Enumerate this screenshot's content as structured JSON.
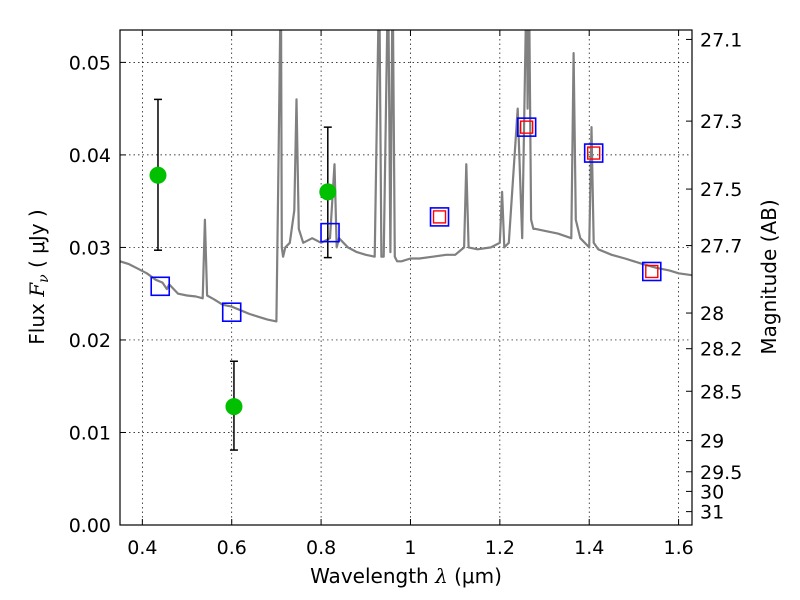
{
  "chart_data": {
    "type": "line",
    "xlabel": {
      "pre": "Wavelength  ",
      "sym": "λ",
      "unit": " (μm)"
    },
    "ylabel": {
      "pre": "Flux  ",
      "sym": "F",
      "sub": "ν",
      "unit": "  ( μJy )"
    },
    "y2label": "Magnitude (AB)",
    "xlim": [
      0.35,
      1.63
    ],
    "ylim": [
      0.0,
      0.0535
    ],
    "grid": true,
    "x_ticks": [
      0.4,
      0.6,
      0.8,
      1.0,
      1.2,
      1.4,
      1.6
    ],
    "x_tick_labels": [
      "0.4",
      "0.6",
      "0.8",
      "1",
      "1.2",
      "1.4",
      "1.6"
    ],
    "y_ticks": [
      0.0,
      0.01,
      0.02,
      0.03,
      0.04,
      0.05
    ],
    "y_tick_labels": [
      "0.00",
      "0.01",
      "0.02",
      "0.03",
      "0.04",
      "0.05"
    ],
    "mag_ticks": [
      "27.1",
      "27.3",
      "27.5",
      "27.7",
      "28",
      "28.2",
      "28.5",
      "29",
      "29.5",
      "30",
      "31"
    ],
    "colors": {
      "model": "#808080",
      "observed": "#00c000",
      "model_band": "#0000ff",
      "model_band_inner": "#ff0000",
      "errorbar": "#000000"
    },
    "series": [
      {
        "kind": "model-spectrum",
        "x": [
          0.35,
          0.37,
          0.39,
          0.41,
          0.43,
          0.445,
          0.455,
          0.46,
          0.48,
          0.5,
          0.52,
          0.535,
          0.54,
          0.545,
          0.56,
          0.58,
          0.6,
          0.62,
          0.64,
          0.66,
          0.68,
          0.7,
          0.705,
          0.71,
          0.712,
          0.715,
          0.72,
          0.73,
          0.74,
          0.745,
          0.75,
          0.76,
          0.78,
          0.8,
          0.82,
          0.83,
          0.835,
          0.84,
          0.86,
          0.88,
          0.9,
          0.92,
          0.93,
          0.935,
          0.94,
          0.95,
          0.955,
          0.96,
          0.965,
          0.97,
          0.98,
          1.0,
          1.02,
          1.05,
          1.08,
          1.1,
          1.12,
          1.125,
          1.13,
          1.15,
          1.18,
          1.2,
          1.205,
          1.21,
          1.22,
          1.24,
          1.25,
          1.26,
          1.262,
          1.265,
          1.27,
          1.275,
          1.28,
          1.3,
          1.33,
          1.36,
          1.365,
          1.37,
          1.38,
          1.4,
          1.405,
          1.41,
          1.42,
          1.45,
          1.48,
          1.5,
          1.52,
          1.55,
          1.58,
          1.6,
          1.63
        ],
        "y": [
          0.0285,
          0.0282,
          0.0277,
          0.0272,
          0.0265,
          0.0262,
          0.0255,
          0.026,
          0.025,
          0.0248,
          0.0247,
          0.0245,
          0.033,
          0.0248,
          0.0244,
          0.0238,
          0.0236,
          0.0232,
          0.0228,
          0.0225,
          0.0222,
          0.022,
          0.04,
          0.06,
          0.03,
          0.029,
          0.03,
          0.0305,
          0.034,
          0.046,
          0.032,
          0.0305,
          0.031,
          0.0305,
          0.031,
          0.039,
          0.03,
          0.031,
          0.03,
          0.0295,
          0.0292,
          0.029,
          0.06,
          0.029,
          0.029,
          0.06,
          0.0295,
          0.06,
          0.029,
          0.0285,
          0.0285,
          0.0288,
          0.0288,
          0.029,
          0.0292,
          0.0292,
          0.03,
          0.039,
          0.03,
          0.0298,
          0.03,
          0.0305,
          0.036,
          0.03,
          0.0305,
          0.045,
          0.031,
          0.06,
          0.045,
          0.06,
          0.033,
          0.032,
          0.032,
          0.0318,
          0.0315,
          0.031,
          0.051,
          0.033,
          0.031,
          0.03,
          0.043,
          0.0305,
          0.0298,
          0.0292,
          0.0288,
          0.0285,
          0.0282,
          0.0278,
          0.0275,
          0.0272,
          0.027
        ]
      },
      {
        "kind": "observed",
        "x": [
          0.435,
          0.605,
          0.815
        ],
        "y": [
          0.0378,
          0.0128,
          0.036
        ],
        "yerr_low": [
          0.0297,
          0.0081,
          0.0289
        ],
        "yerr_high": [
          0.046,
          0.0177,
          0.043
        ]
      },
      {
        "kind": "model-band-flux",
        "x": [
          0.44,
          0.6,
          0.82,
          1.065,
          1.26,
          1.41,
          1.54
        ],
        "y": [
          0.0258,
          0.023,
          0.0316,
          0.0333,
          0.043,
          0.0402,
          0.0274
        ],
        "inner": [
          false,
          false,
          false,
          true,
          true,
          true,
          true
        ]
      }
    ]
  }
}
